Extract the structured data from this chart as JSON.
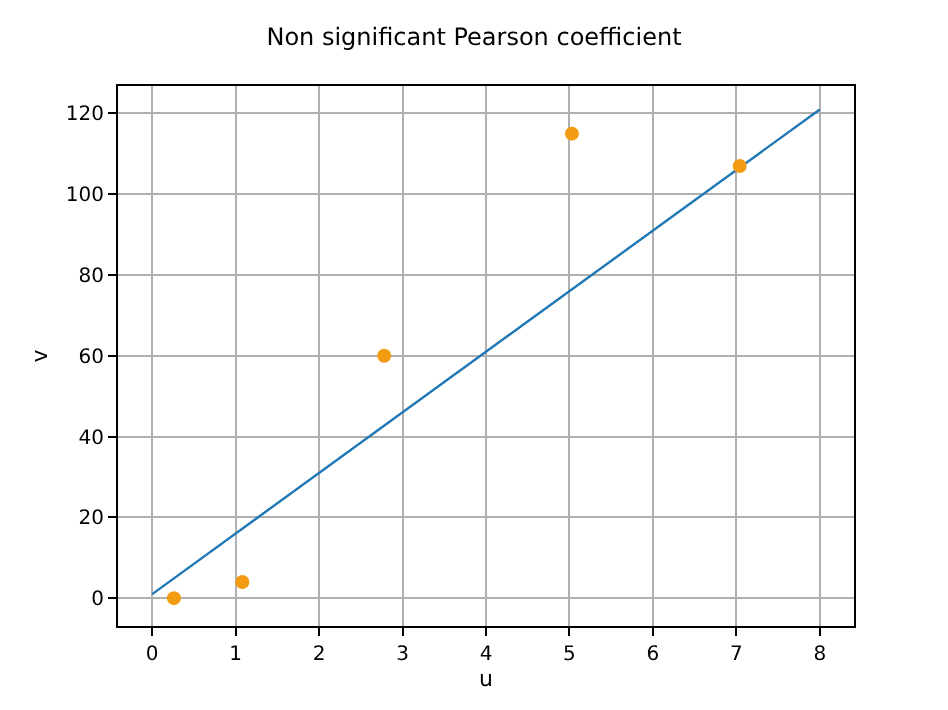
{
  "chart_data": {
    "type": "scatter",
    "title": "Non significant Pearson coefficient",
    "xlabel": "u",
    "ylabel": "v",
    "xlim": [
      -0.41,
      8.41
    ],
    "xticks": [
      0,
      1,
      2,
      3,
      4,
      5,
      6,
      7,
      8
    ],
    "ylim": [
      -6.9,
      126.8
    ],
    "yticks": [
      0,
      20,
      40,
      60,
      80,
      100,
      120
    ],
    "grid": true,
    "series": [
      {
        "type": "line",
        "x": [
          0,
          8
        ],
        "values": [
          1,
          121
        ],
        "color": "#1f77b4",
        "marker": "none",
        "line_style": "solid"
      },
      {
        "x": [
          0.26,
          1.08,
          2.78,
          5.03,
          7.04
        ],
        "values": [
          0,
          4,
          60,
          115,
          107
        ],
        "color": "#f39c12",
        "marker": "circle"
      }
    ]
  }
}
